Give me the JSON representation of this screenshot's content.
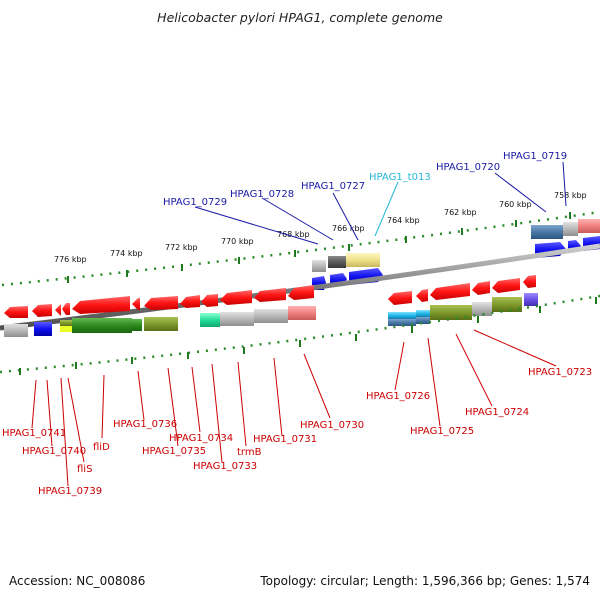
{
  "title": "Helicobacter pylori HPAG1, complete genome",
  "footer": {
    "accession": "Accession: NC_008086",
    "summary": "Topology: circular; Length: 1,596,366 bp; Genes: 1,574"
  },
  "scale_labels": [
    "776 kbp",
    "774 kbp",
    "772 kbp",
    "770 kbp",
    "768 kbp",
    "766 kbp",
    "764 kbp",
    "762 kbp",
    "760 kbp",
    "758 kbp"
  ],
  "labels": {
    "HPAG1_0719": "HPAG1_0719",
    "HPAG1_0720": "HPAG1_0720",
    "HPAG1_t013": "HPAG1_t013",
    "HPAG1_0727": "HPAG1_0727",
    "HPAG1_0728": "HPAG1_0728",
    "HPAG1_0729": "HPAG1_0729",
    "HPAG1_0723": "HPAG1_0723",
    "HPAG1_0724": "HPAG1_0724",
    "HPAG1_0725": "HPAG1_0725",
    "HPAG1_0726": "HPAG1_0726",
    "HPAG1_0730": "HPAG1_0730",
    "HPAG1_0731": "HPAG1_0731",
    "trmB": "trmB",
    "HPAG1_0733": "HPAG1_0733",
    "HPAG1_0734": "HPAG1_0734",
    "HPAG1_0735": "HPAG1_0735",
    "HPAG1_0736": "HPAG1_0736",
    "fliD": "fliD",
    "fliS": "fliS",
    "HPAG1_0739": "HPAG1_0739",
    "HPAG1_0740": "HPAG1_0740",
    "HPAG1_0741": "HPAG1_0741"
  },
  "colors": {
    "cds": "#ff1a1a",
    "backbone": "#8c8c8c",
    "gene_blue": "#1010ee",
    "feature_green": "#2e8b1e",
    "feature_olive": "#7f9a2a",
    "feature_gray": "#b8b8b8",
    "feature_pink": "#f08080",
    "label_red": "#cc0000",
    "label_blue": "#1a1aa6",
    "label_cyan": "#22b8d6"
  }
}
